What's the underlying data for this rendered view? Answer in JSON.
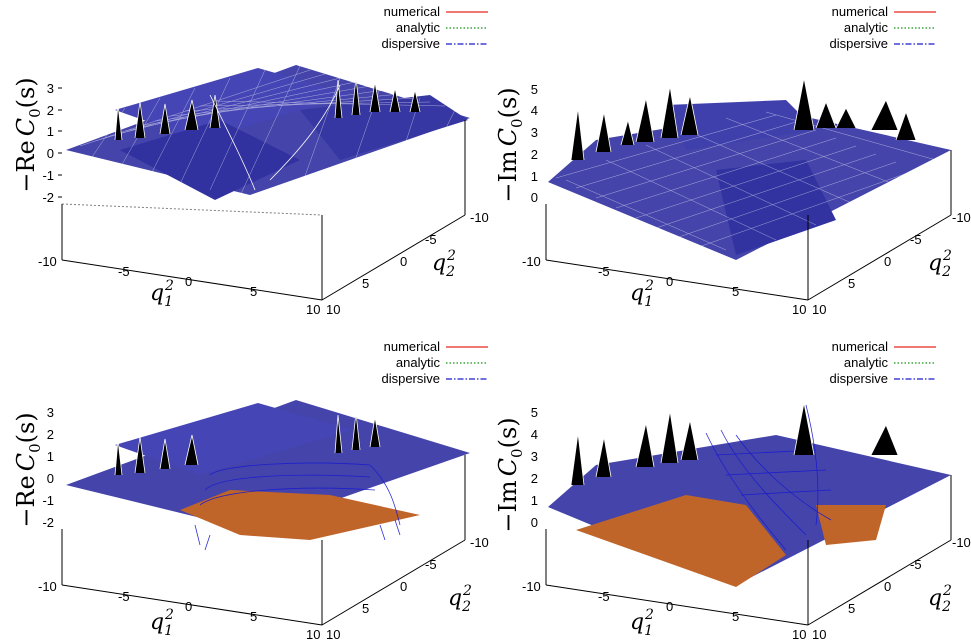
{
  "colors": {
    "numerical": "#e8281e",
    "analytic": "#159415",
    "dispersive": "#1a1acf",
    "surface_dark": "#3a3aa6",
    "surface_orange": "#c0652a"
  },
  "chart_data": [
    {
      "type": "surface",
      "zlabel_prefix": "−Re",
      "zlabel_func": "C",
      "zlabel_sub": "0",
      "zlabel_arg": "(s)",
      "xlabel_base": "q",
      "xlabel_sub": "1",
      "xlabel_sup": "2",
      "ylabel_base": "q",
      "ylabel_sub": "2",
      "ylabel_sup": "2",
      "x_ticks": [
        "-10",
        "-5",
        "0",
        "5",
        "10"
      ],
      "y_ticks": [
        "-10",
        "-5",
        "0",
        "5",
        "10"
      ],
      "z_ticks": [
        "3",
        "2",
        "1",
        "0",
        "-1",
        "-2"
      ],
      "xlim": [
        -10,
        10
      ],
      "ylim": [
        -10,
        10
      ],
      "zlim": [
        -2,
        3
      ],
      "legend": [
        {
          "label": "numerical",
          "style": "solid",
          "color": "#e8281e"
        },
        {
          "label": "analytic",
          "style": "dotted",
          "color": "#159415"
        },
        {
          "label": "dispersive",
          "style": "dashdot",
          "color": "#1a1acf"
        }
      ],
      "legend_position": "top-right",
      "series_agree": true
    },
    {
      "type": "surface",
      "zlabel_prefix": "−Im",
      "zlabel_func": "C",
      "zlabel_sub": "0",
      "zlabel_arg": "(s)",
      "xlabel_base": "q",
      "xlabel_sub": "1",
      "xlabel_sup": "2",
      "ylabel_base": "q",
      "ylabel_sub": "2",
      "ylabel_sup": "2",
      "x_ticks": [
        "-10",
        "-5",
        "0",
        "5",
        "10"
      ],
      "y_ticks": [
        "-10",
        "-5",
        "0",
        "5",
        "10"
      ],
      "z_ticks": [
        "5",
        "4",
        "3",
        "2",
        "1",
        "0"
      ],
      "xlim": [
        -10,
        10
      ],
      "ylim": [
        -10,
        10
      ],
      "zlim": [
        0,
        5
      ],
      "legend": [
        {
          "label": "numerical",
          "style": "solid",
          "color": "#e8281e"
        },
        {
          "label": "analytic",
          "style": "dotted",
          "color": "#159415"
        },
        {
          "label": "dispersive",
          "style": "dashdot",
          "color": "#1a1acf"
        }
      ],
      "legend_position": "top-right",
      "series_agree": true
    },
    {
      "type": "surface",
      "zlabel_prefix": "−Re",
      "zlabel_func": "C",
      "zlabel_sub": "0",
      "zlabel_arg": "(s)",
      "xlabel_base": "q",
      "xlabel_sub": "1",
      "xlabel_sup": "2",
      "ylabel_base": "q",
      "ylabel_sub": "2",
      "ylabel_sup": "2",
      "x_ticks": [
        "-10",
        "-5",
        "0",
        "5",
        "10"
      ],
      "y_ticks": [
        "-10",
        "-5",
        "0",
        "5",
        "10"
      ],
      "z_ticks": [
        "3",
        "2",
        "1",
        "0",
        "-1",
        "-2"
      ],
      "xlim": [
        -10,
        10
      ],
      "ylim": [
        -10,
        10
      ],
      "zlim": [
        -2,
        3
      ],
      "legend": [
        {
          "label": "numerical",
          "style": "solid",
          "color": "#e8281e"
        },
        {
          "label": "analytic",
          "style": "dotted",
          "color": "#159415"
        },
        {
          "label": "dispersive",
          "style": "dashdot",
          "color": "#1a1acf"
        }
      ],
      "legend_position": "top-right",
      "series_agree": false
    },
    {
      "type": "surface",
      "zlabel_prefix": "−Im",
      "zlabel_func": "C",
      "zlabel_sub": "0",
      "zlabel_arg": "(s)",
      "xlabel_base": "q",
      "xlabel_sub": "1",
      "xlabel_sup": "2",
      "ylabel_base": "q",
      "ylabel_sub": "2",
      "ylabel_sup": "2",
      "x_ticks": [
        "-10",
        "-5",
        "0",
        "5",
        "10"
      ],
      "y_ticks": [
        "-10",
        "-5",
        "0",
        "5",
        "10"
      ],
      "z_ticks": [
        "5",
        "4",
        "3",
        "2",
        "1",
        "0"
      ],
      "xlim": [
        -10,
        10
      ],
      "ylim": [
        -10,
        10
      ],
      "zlim": [
        0,
        5
      ],
      "legend": [
        {
          "label": "numerical",
          "style": "solid",
          "color": "#e8281e"
        },
        {
          "label": "analytic",
          "style": "dotted",
          "color": "#159415"
        },
        {
          "label": "dispersive",
          "style": "dashdot",
          "color": "#1a1acf"
        }
      ],
      "legend_position": "top-right",
      "series_agree": false
    }
  ]
}
